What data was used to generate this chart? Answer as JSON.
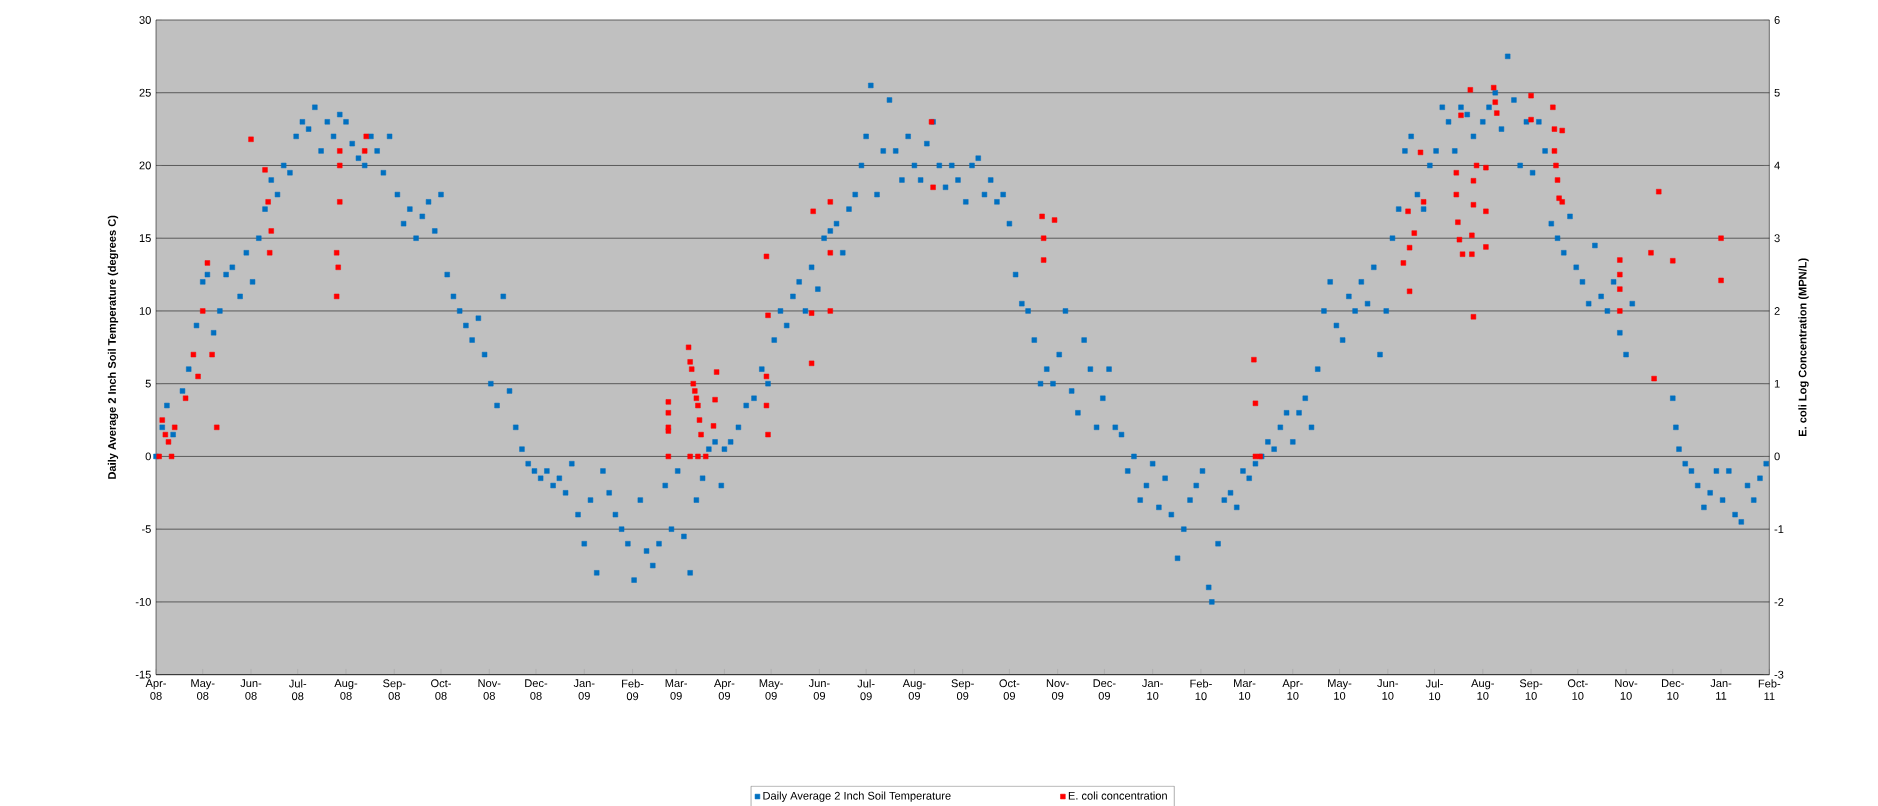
{
  "chart_data": {
    "type": "scatter",
    "ylabel": "Daily Average 2 Inch Soil Temperature (degrees C)",
    "y2label": "E. coli Log Concentration (MPN/L)",
    "xlim": [
      "2008-04-01",
      "2011-02-01"
    ],
    "xticks": [
      {
        "value": "2008-04-01",
        "label": "Apr-08"
      },
      {
        "value": "2008-05-01",
        "label": "May-08"
      },
      {
        "value": "2008-06-01",
        "label": "Jun-08"
      },
      {
        "value": "2008-07-01",
        "label": "Jul-08"
      },
      {
        "value": "2008-08-01",
        "label": "Aug-08"
      },
      {
        "value": "2008-09-01",
        "label": "Sep-08"
      },
      {
        "value": "2008-10-01",
        "label": "Oct-08"
      },
      {
        "value": "2008-11-01",
        "label": "Nov-08"
      },
      {
        "value": "2008-12-01",
        "label": "Dec-08"
      },
      {
        "value": "2009-01-01",
        "label": "Jan-09"
      },
      {
        "value": "2009-02-01",
        "label": "Feb-09"
      },
      {
        "value": "2009-03-01",
        "label": "Mar-09"
      },
      {
        "value": "2009-04-01",
        "label": "Apr-09"
      },
      {
        "value": "2009-05-01",
        "label": "May-09"
      },
      {
        "value": "2009-06-01",
        "label": "Jun-09"
      },
      {
        "value": "2009-07-01",
        "label": "Jul-09"
      },
      {
        "value": "2009-08-01",
        "label": "Aug-09"
      },
      {
        "value": "2009-09-01",
        "label": "Sep-09"
      },
      {
        "value": "2009-10-01",
        "label": "Oct-09"
      },
      {
        "value": "2009-11-01",
        "label": "Nov-09"
      },
      {
        "value": "2009-12-01",
        "label": "Dec-09"
      },
      {
        "value": "2010-01-01",
        "label": "Jan-10"
      },
      {
        "value": "2010-02-01",
        "label": "Feb-10"
      },
      {
        "value": "2010-03-01",
        "label": "Mar-10"
      },
      {
        "value": "2010-04-01",
        "label": "Apr-10"
      },
      {
        "value": "2010-05-01",
        "label": "May-10"
      },
      {
        "value": "2010-06-01",
        "label": "Jun-10"
      },
      {
        "value": "2010-07-01",
        "label": "Jul-10"
      },
      {
        "value": "2010-08-01",
        "label": "Aug-10"
      },
      {
        "value": "2010-09-01",
        "label": "Sep-10"
      },
      {
        "value": "2010-10-01",
        "label": "Oct-10"
      },
      {
        "value": "2010-11-01",
        "label": "Nov-10"
      },
      {
        "value": "2010-12-01",
        "label": "Dec-10"
      },
      {
        "value": "2011-01-01",
        "label": "Jan-11"
      },
      {
        "value": "2011-02-01",
        "label": "Feb-11"
      }
    ],
    "ylim": [
      -15,
      30
    ],
    "yticks": [
      -15,
      -10,
      -5,
      0,
      5,
      10,
      15,
      20,
      25,
      30
    ],
    "y2lim": [
      -3,
      6
    ],
    "y2ticks": [
      -3,
      -2,
      -1,
      0,
      1,
      2,
      3,
      4,
      5,
      6
    ],
    "grid": "y",
    "legend": "bottom",
    "marker": "square",
    "series": [
      {
        "name": "Daily Average 2 Inch Soil Temperature",
        "color": "#0070c0",
        "x": [
          "2008-04-01",
          "2008-04-05",
          "2008-04-08",
          "2008-04-12",
          "2008-04-18",
          "2008-04-22",
          "2008-04-27",
          "2008-05-01",
          "2008-05-04",
          "2008-05-08",
          "2008-05-12",
          "2008-05-16",
          "2008-05-20",
          "2008-05-25",
          "2008-05-29",
          "2008-06-02",
          "2008-06-06",
          "2008-06-10",
          "2008-06-14",
          "2008-06-18",
          "2008-06-22",
          "2008-06-26",
          "2008-06-30",
          "2008-07-04",
          "2008-07-08",
          "2008-07-12",
          "2008-07-16",
          "2008-07-20",
          "2008-07-24",
          "2008-07-28",
          "2008-08-01",
          "2008-08-05",
          "2008-08-09",
          "2008-08-13",
          "2008-08-17",
          "2008-08-21",
          "2008-08-25",
          "2008-08-29",
          "2008-09-03",
          "2008-09-07",
          "2008-09-11",
          "2008-09-15",
          "2008-09-19",
          "2008-09-23",
          "2008-09-27",
          "2008-10-01",
          "2008-10-05",
          "2008-10-09",
          "2008-10-13",
          "2008-10-17",
          "2008-10-21",
          "2008-10-25",
          "2008-10-29",
          "2008-11-02",
          "2008-11-06",
          "2008-11-10",
          "2008-11-14",
          "2008-11-18",
          "2008-11-22",
          "2008-11-26",
          "2008-11-30",
          "2008-12-04",
          "2008-12-08",
          "2008-12-12",
          "2008-12-16",
          "2008-12-20",
          "2008-12-24",
          "2008-12-28",
          "2009-01-01",
          "2009-01-05",
          "2009-01-09",
          "2009-01-13",
          "2009-01-17",
          "2009-01-21",
          "2009-01-25",
          "2009-01-29",
          "2009-02-02",
          "2009-02-06",
          "2009-02-10",
          "2009-02-14",
          "2009-02-18",
          "2009-02-22",
          "2009-02-26",
          "2009-03-02",
          "2009-03-06",
          "2009-03-10",
          "2009-03-14",
          "2009-03-18",
          "2009-03-22",
          "2009-03-26",
          "2009-03-30",
          "2009-04-01",
          "2009-04-05",
          "2009-04-10",
          "2009-04-15",
          "2009-04-20",
          "2009-04-25",
          "2009-04-29",
          "2009-05-03",
          "2009-05-07",
          "2009-05-11",
          "2009-05-15",
          "2009-05-19",
          "2009-05-23",
          "2009-05-27",
          "2009-05-31",
          "2009-06-04",
          "2009-06-08",
          "2009-06-12",
          "2009-06-16",
          "2009-06-20",
          "2009-06-24",
          "2009-06-28",
          "2009-07-01",
          "2009-07-04",
          "2009-07-08",
          "2009-07-12",
          "2009-07-16",
          "2009-07-20",
          "2009-07-24",
          "2009-07-28",
          "2009-08-01",
          "2009-08-05",
          "2009-08-09",
          "2009-08-13",
          "2009-08-17",
          "2009-08-21",
          "2009-08-25",
          "2009-08-29",
          "2009-09-03",
          "2009-09-07",
          "2009-09-11",
          "2009-09-15",
          "2009-09-19",
          "2009-09-23",
          "2009-09-27",
          "2009-10-01",
          "2009-10-05",
          "2009-10-09",
          "2009-10-13",
          "2009-10-17",
          "2009-10-21",
          "2009-10-25",
          "2009-10-29",
          "2009-11-02",
          "2009-11-06",
          "2009-11-10",
          "2009-11-14",
          "2009-11-18",
          "2009-11-22",
          "2009-11-26",
          "2009-11-30",
          "2009-12-04",
          "2009-12-08",
          "2009-12-12",
          "2009-12-16",
          "2009-12-20",
          "2009-12-24",
          "2009-12-28",
          "2010-01-01",
          "2010-01-05",
          "2010-01-09",
          "2010-01-13",
          "2010-01-17",
          "2010-01-21",
          "2010-01-25",
          "2010-01-29",
          "2010-02-02",
          "2010-02-06",
          "2010-02-08",
          "2010-02-12",
          "2010-02-16",
          "2010-02-20",
          "2010-02-24",
          "2010-02-28",
          "2010-03-04",
          "2010-03-08",
          "2010-03-12",
          "2010-03-16",
          "2010-03-20",
          "2010-03-24",
          "2010-03-28",
          "2010-04-01",
          "2010-04-05",
          "2010-04-09",
          "2010-04-13",
          "2010-04-17",
          "2010-04-21",
          "2010-04-25",
          "2010-04-29",
          "2010-05-03",
          "2010-05-07",
          "2010-05-11",
          "2010-05-15",
          "2010-05-19",
          "2010-05-23",
          "2010-05-27",
          "2010-05-31",
          "2010-06-04",
          "2010-06-08",
          "2010-06-12",
          "2010-06-16",
          "2010-06-20",
          "2010-06-24",
          "2010-06-28",
          "2010-07-02",
          "2010-07-06",
          "2010-07-10",
          "2010-07-14",
          "2010-07-18",
          "2010-07-22",
          "2010-07-26",
          "2010-08-01",
          "2010-08-05",
          "2010-08-09",
          "2010-08-13",
          "2010-08-17",
          "2010-08-21",
          "2010-08-25",
          "2010-08-29",
          "2010-09-02",
          "2010-09-06",
          "2010-09-10",
          "2010-09-14",
          "2010-09-18",
          "2010-09-22",
          "2010-09-26",
          "2010-09-30",
          "2010-10-04",
          "2010-10-08",
          "2010-10-12",
          "2010-10-16",
          "2010-10-20",
          "2010-10-24",
          "2010-10-28",
          "2010-11-01",
          "2010-11-05",
          "2010-12-01",
          "2010-12-03",
          "2010-12-05",
          "2010-12-09",
          "2010-12-13",
          "2010-12-17",
          "2010-12-21",
          "2010-12-25",
          "2010-12-29",
          "2011-01-02",
          "2011-01-06",
          "2011-01-10",
          "2011-01-14",
          "2011-01-18",
          "2011-01-22",
          "2011-01-26",
          "2011-01-30"
        ],
        "values": [
          0,
          2,
          3.5,
          1.5,
          4.5,
          6,
          9,
          12,
          12.5,
          8.5,
          10,
          12.5,
          13,
          11,
          14,
          12,
          15,
          17,
          19,
          18,
          20,
          19.5,
          22,
          23,
          22.5,
          24,
          21,
          23,
          22,
          23.5,
          23,
          21.5,
          20.5,
          20,
          22,
          21,
          19.5,
          22,
          18,
          16,
          17,
          15,
          16.5,
          17.5,
          15.5,
          18,
          12.5,
          11,
          10,
          9,
          8,
          9.5,
          7,
          5,
          3.5,
          11,
          4.5,
          2,
          0.5,
          -0.5,
          -1,
          -1.5,
          -1,
          -2,
          -1.5,
          -2.5,
          -0.5,
          -4,
          -6,
          -3,
          -8,
          -1,
          -2.5,
          -4,
          -5,
          -6,
          -8.5,
          -3,
          -6.5,
          -7.5,
          -6,
          -2,
          -5,
          -1,
          -5.5,
          -8,
          -3,
          -1.5,
          0.5,
          1,
          -2,
          0.5,
          1,
          2,
          3.5,
          4,
          6,
          5,
          8,
          10,
          9,
          11,
          12,
          10,
          13,
          11.5,
          15,
          15.5,
          16,
          14,
          17,
          18,
          20,
          22,
          25.5,
          18,
          21,
          24.5,
          21,
          19,
          22,
          20,
          19,
          21.5,
          23,
          20,
          18.5,
          20,
          19,
          17.5,
          20,
          20.5,
          18,
          19,
          17.5,
          18,
          16,
          12.5,
          10.5,
          10,
          8,
          5,
          6,
          5,
          7,
          10,
          4.5,
          3,
          8,
          6,
          2,
          4,
          6,
          2,
          1.5,
          -1,
          0,
          -3,
          -2,
          -0.5,
          -3.5,
          -1.5,
          -4,
          -7,
          -5,
          -3,
          -2,
          -1,
          -9,
          -10,
          -6,
          -3,
          -2.5,
          -3.5,
          -1,
          -1.5,
          -0.5,
          0,
          1,
          0.5,
          2,
          3,
          1,
          3,
          4,
          2,
          6,
          10,
          12,
          9,
          8,
          11,
          10,
          12,
          10.5,
          13,
          7,
          10,
          15,
          17,
          21,
          22,
          18,
          17,
          20,
          21,
          24,
          23,
          21,
          24,
          23.5,
          22,
          23,
          24,
          25,
          22.5,
          27.5,
          24.5,
          20,
          23,
          19.5,
          23,
          21,
          16,
          15,
          14,
          16.5,
          13,
          12,
          10.5,
          14.5,
          11,
          10,
          12,
          8.5,
          7,
          10.5,
          4,
          2,
          0.5,
          -0.5,
          -1,
          -2,
          -3.5,
          -2.5,
          -1,
          -3,
          -1,
          -4,
          -4.5,
          -2,
          -3,
          -1.5,
          -0.5
        ]
      },
      {
        "name": "E. coli concentration",
        "color": "#ff0000",
        "axis": "y2",
        "x": [
          "2008-04-03",
          "2008-04-05",
          "2008-04-07",
          "2008-04-09",
          "2008-04-11",
          "2008-04-13",
          "2008-04-20",
          "2008-04-25",
          "2008-04-28",
          "2008-05-01",
          "2008-05-04",
          "2008-05-07",
          "2008-05-10",
          "2008-06-01",
          "2008-06-10",
          "2008-06-12",
          "2008-06-14",
          "2008-06-13",
          "2008-07-26",
          "2008-07-27",
          "2008-07-26",
          "2008-07-28",
          "2008-07-28",
          "2008-07-28",
          "2008-08-14",
          "2008-08-13",
          "2009-02-24",
          "2009-02-24",
          "2009-02-24",
          "2009-02-24",
          "2009-02-24",
          "2009-03-09",
          "2009-03-10",
          "2009-03-11",
          "2009-03-12",
          "2009-03-13",
          "2009-03-14",
          "2009-03-15",
          "2009-03-16",
          "2009-03-17",
          "2009-03-10",
          "2009-03-15",
          "2009-03-20",
          "2009-03-27",
          "2009-03-26",
          "2009-03-25",
          "2009-04-28",
          "2009-04-29",
          "2009-04-28",
          "2009-04-28",
          "2009-04-29",
          "2009-05-27",
          "2009-05-27",
          "2009-05-28",
          "2009-06-08",
          "2009-06-08",
          "2009-06-08",
          "2009-08-12",
          "2009-08-13",
          "2009-10-22",
          "2009-10-30",
          "2009-10-23",
          "2009-10-23",
          "2010-03-07",
          "2010-03-08",
          "2010-03-08",
          "2010-03-11",
          "2010-06-11",
          "2010-06-15",
          "2010-06-15",
          "2010-06-18",
          "2010-06-22",
          "2010-06-24",
          "2010-06-14",
          "2010-07-15",
          "2010-07-15",
          "2010-07-16",
          "2010-07-17",
          "2010-07-19",
          "2010-07-25",
          "2010-07-25",
          "2010-07-26",
          "2010-07-26",
          "2010-07-28",
          "2010-08-03",
          "2010-08-03",
          "2010-08-03",
          "2010-07-26",
          "2010-07-24",
          "2010-07-18",
          "2010-08-08",
          "2010-08-09",
          "2010-08-10",
          "2010-09-01",
          "2010-09-01",
          "2010-09-15",
          "2010-09-16",
          "2010-09-16",
          "2010-09-17",
          "2010-09-18",
          "2010-09-19",
          "2010-09-21",
          "2010-09-21",
          "2010-10-28",
          "2010-10-28",
          "2010-10-28",
          "2010-10-28",
          "2010-11-17",
          "2010-11-19",
          "2010-11-22",
          "2010-12-01",
          "2011-01-01",
          "2011-01-01"
        ],
        "values": [
          0,
          0.5,
          0.3,
          0.2,
          0,
          0.4,
          0.8,
          1.4,
          1.1,
          2,
          2.66,
          1.4,
          0.4,
          4.36,
          3.94,
          3.5,
          3.1,
          2.8,
          2.8,
          2.6,
          2.2,
          4.2,
          4,
          3.5,
          4.4,
          4.2,
          0,
          0.35,
          0.4,
          0.6,
          0.75,
          1.5,
          1.3,
          1.2,
          1,
          0.9,
          0.8,
          0.7,
          0.5,
          0.3,
          0,
          0,
          0,
          1.16,
          0.78,
          0.42,
          2.75,
          1.94,
          1.1,
          0.7,
          0.3,
          1.97,
          1.28,
          3.37,
          3.5,
          2.8,
          2,
          4.6,
          3.7,
          3.3,
          3.25,
          3,
          2.7,
          1.33,
          0.73,
          0,
          0,
          2.66,
          2.27,
          2.87,
          3.07,
          4.18,
          3.5,
          3.37,
          3.9,
          3.6,
          3.22,
          2.98,
          2.78,
          2.78,
          3.04,
          3.46,
          3.79,
          4,
          3.97,
          3.37,
          2.88,
          1.92,
          5.04,
          4.69,
          5.07,
          4.87,
          4.72,
          4.96,
          4.63,
          4.8,
          4.5,
          4.2,
          4,
          3.8,
          3.55,
          3.5,
          4.48,
          2.7,
          2.5,
          2.3,
          2,
          2.8,
          1.07,
          3.64,
          2.69,
          3,
          2.42
        ]
      }
    ]
  }
}
